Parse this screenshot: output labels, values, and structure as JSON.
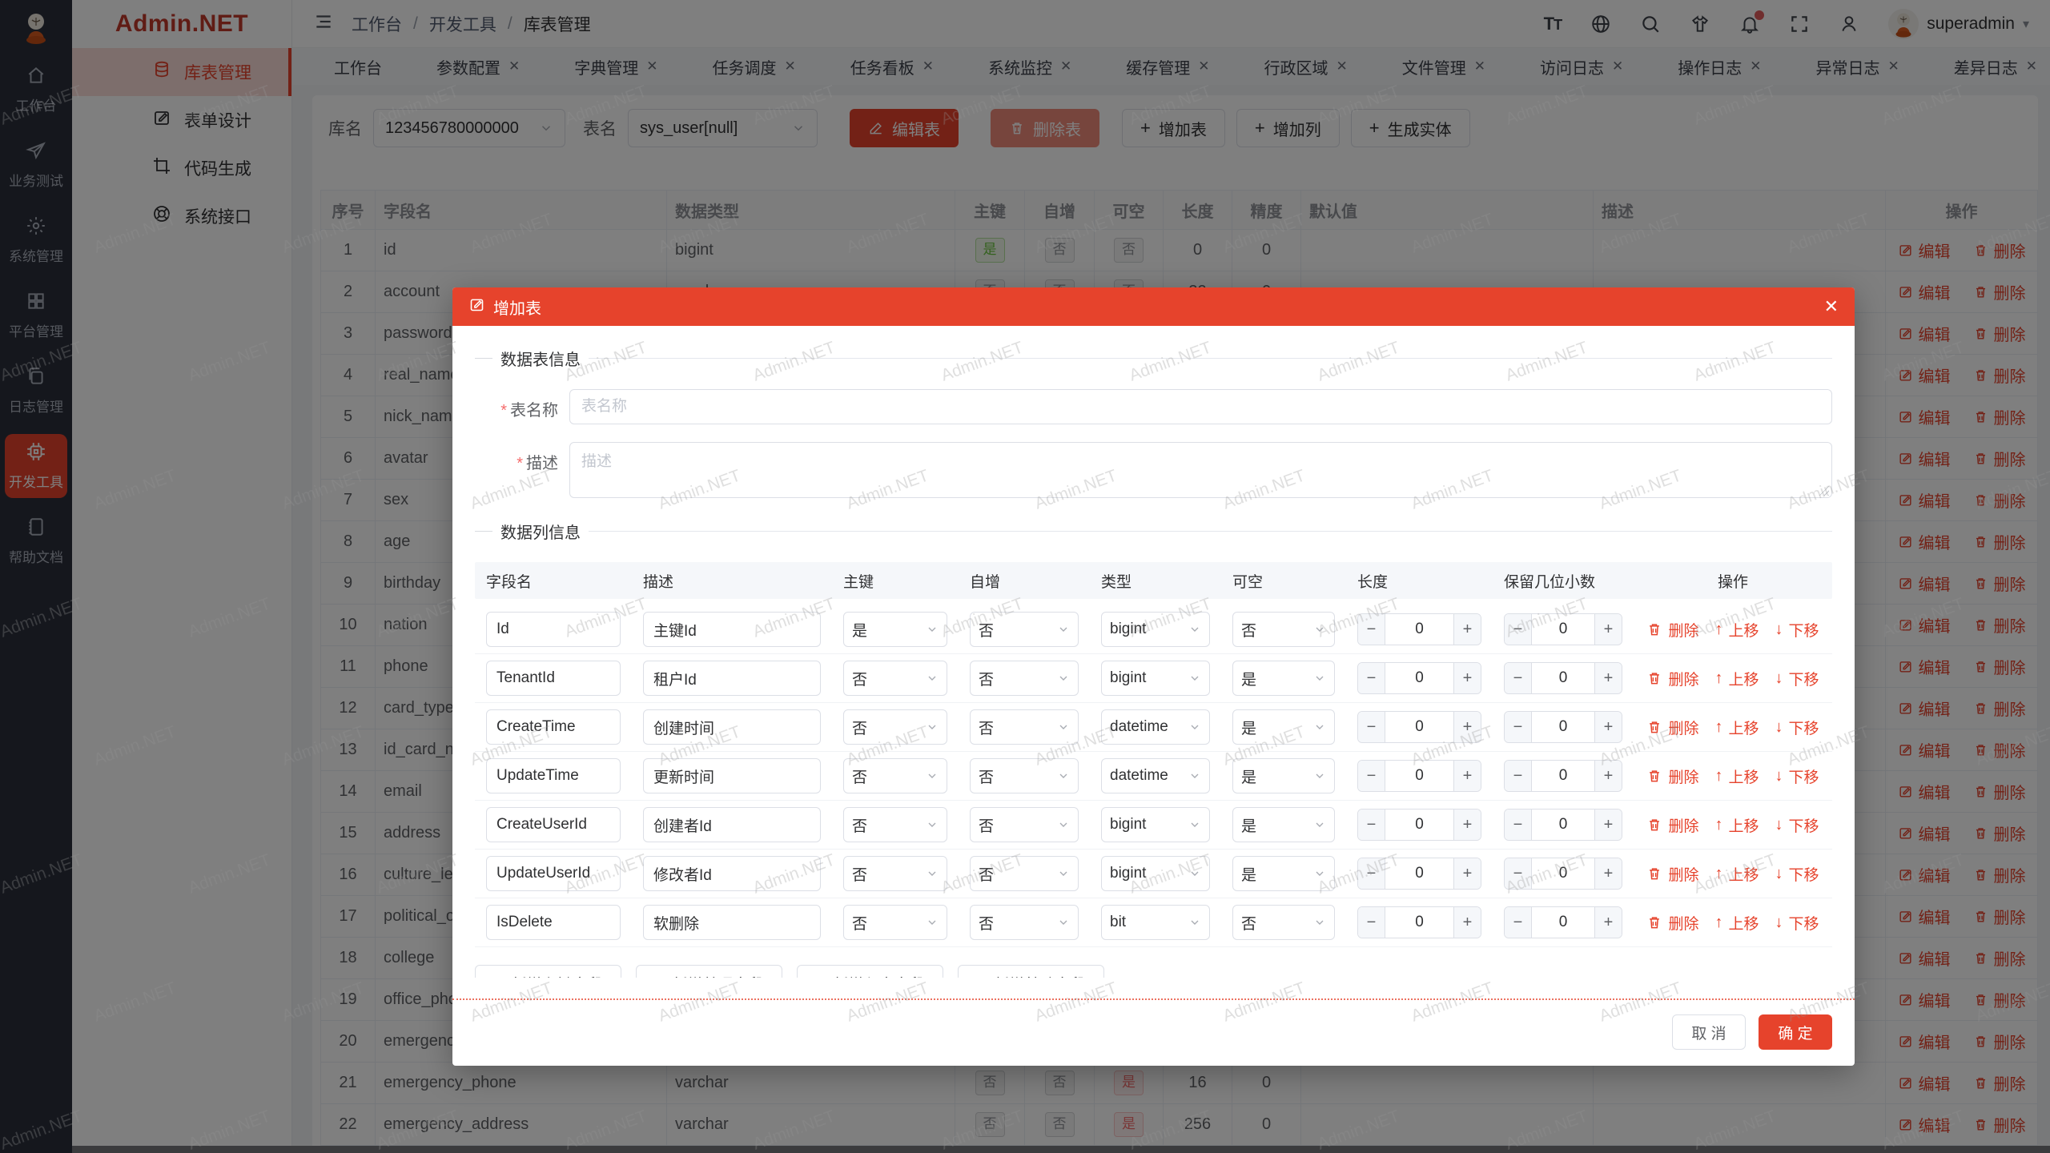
{
  "brand": {
    "name": "Admin.NET"
  },
  "colors": {
    "primary": "#e6432c",
    "sidebar_dark": "#2b2f3a",
    "pk_green": "#67c23a",
    "nullable_red": "#f56c6c"
  },
  "watermark": "Admin.NET",
  "icon_sidebar": {
    "items": [
      {
        "icon": "home-icon",
        "label": "工作台",
        "active": false
      },
      {
        "icon": "send-icon",
        "label": "业务测试",
        "active": false
      },
      {
        "icon": "gear-icon",
        "label": "系统管理",
        "active": false
      },
      {
        "icon": "grid-icon",
        "label": "平台管理",
        "active": false
      },
      {
        "icon": "copy-icon",
        "label": "日志管理",
        "active": false
      },
      {
        "icon": "chip-icon",
        "label": "开发工具",
        "active": true
      },
      {
        "icon": "notebook-icon",
        "label": "帮助文档",
        "active": false
      }
    ]
  },
  "menu_sidebar": {
    "items": [
      {
        "icon": "database-icon",
        "label": "库表管理",
        "active": true
      },
      {
        "icon": "edit-square-icon",
        "label": "表单设计",
        "active": false
      },
      {
        "icon": "crop-icon",
        "label": "代码生成",
        "active": false
      },
      {
        "icon": "api-icon",
        "label": "系统接口",
        "active": false
      }
    ]
  },
  "topbar": {
    "breadcrumb": [
      "工作台",
      "开发工具",
      "库表管理"
    ],
    "username": "superadmin"
  },
  "tabs": [
    {
      "label": "工作台",
      "closable": false,
      "active": false
    },
    {
      "label": "参数配置",
      "closable": true,
      "active": false
    },
    {
      "label": "字典管理",
      "closable": true,
      "active": false
    },
    {
      "label": "任务调度",
      "closable": true,
      "active": false
    },
    {
      "label": "任务看板",
      "closable": true,
      "active": false
    },
    {
      "label": "系统监控",
      "closable": true,
      "active": false
    },
    {
      "label": "缓存管理",
      "closable": true,
      "active": false
    },
    {
      "label": "行政区域",
      "closable": true,
      "active": false
    },
    {
      "label": "文件管理",
      "closable": true,
      "active": false
    },
    {
      "label": "访问日志",
      "closable": true,
      "active": false
    },
    {
      "label": "操作日志",
      "closable": true,
      "active": false
    },
    {
      "label": "异常日志",
      "closable": true,
      "active": false
    },
    {
      "label": "差异日志",
      "closable": true,
      "active": false
    },
    {
      "label": "库表管理",
      "closable": true,
      "active": true
    }
  ],
  "toolbar": {
    "db_label": "库名",
    "db_value": "123456780000000",
    "table_label": "表名",
    "table_value": "sys_user[null]",
    "edit_table": "编辑表",
    "delete_table": "删除表",
    "add_table": "增加表",
    "add_column": "增加列",
    "gen_entity": "生成实体"
  },
  "table": {
    "headers": [
      "序号",
      "字段名",
      "数据类型",
      "主键",
      "自增",
      "可空",
      "长度",
      "精度",
      "默认值",
      "描述",
      "操作"
    ],
    "edit_label": "编辑",
    "delete_label": "删除",
    "rows": [
      {
        "no": "1",
        "field": "id",
        "type": "bigint",
        "pk": "是",
        "inc": "否",
        "nullable": "否",
        "len": "0",
        "precision": "0",
        "default": "",
        "desc": ""
      },
      {
        "no": "2",
        "field": "account",
        "type": "varchar",
        "pk": "否",
        "inc": "否",
        "nullable": "否",
        "len": "32",
        "precision": "0",
        "default": "",
        "desc": ""
      },
      {
        "no": "3",
        "field": "password",
        "type": "",
        "pk": "",
        "inc": "",
        "nullable": "",
        "len": "",
        "precision": "",
        "default": "",
        "desc": ""
      },
      {
        "no": "4",
        "field": "real_name",
        "type": "",
        "pk": "",
        "inc": "",
        "nullable": "",
        "len": "",
        "precision": "",
        "default": "",
        "desc": ""
      },
      {
        "no": "5",
        "field": "nick_name",
        "type": "",
        "pk": "",
        "inc": "",
        "nullable": "",
        "len": "",
        "precision": "",
        "default": "",
        "desc": ""
      },
      {
        "no": "6",
        "field": "avatar",
        "type": "",
        "pk": "",
        "inc": "",
        "nullable": "",
        "len": "",
        "precision": "",
        "default": "",
        "desc": ""
      },
      {
        "no": "7",
        "field": "sex",
        "type": "",
        "pk": "",
        "inc": "",
        "nullable": "",
        "len": "",
        "precision": "",
        "default": "",
        "desc": ""
      },
      {
        "no": "8",
        "field": "age",
        "type": "",
        "pk": "",
        "inc": "",
        "nullable": "",
        "len": "",
        "precision": "",
        "default": "",
        "desc": ""
      },
      {
        "no": "9",
        "field": "birthday",
        "type": "",
        "pk": "",
        "inc": "",
        "nullable": "",
        "len": "",
        "precision": "",
        "default": "",
        "desc": ""
      },
      {
        "no": "10",
        "field": "nation",
        "type": "",
        "pk": "",
        "inc": "",
        "nullable": "",
        "len": "",
        "precision": "",
        "default": "",
        "desc": ""
      },
      {
        "no": "11",
        "field": "phone",
        "type": "",
        "pk": "",
        "inc": "",
        "nullable": "",
        "len": "",
        "precision": "",
        "default": "",
        "desc": ""
      },
      {
        "no": "12",
        "field": "card_type",
        "type": "",
        "pk": "",
        "inc": "",
        "nullable": "",
        "len": "",
        "precision": "",
        "default": "",
        "desc": ""
      },
      {
        "no": "13",
        "field": "id_card_num",
        "type": "",
        "pk": "",
        "inc": "",
        "nullable": "",
        "len": "",
        "precision": "",
        "default": "",
        "desc": ""
      },
      {
        "no": "14",
        "field": "email",
        "type": "",
        "pk": "",
        "inc": "",
        "nullable": "",
        "len": "",
        "precision": "",
        "default": "",
        "desc": ""
      },
      {
        "no": "15",
        "field": "address",
        "type": "",
        "pk": "",
        "inc": "",
        "nullable": "",
        "len": "",
        "precision": "",
        "default": "",
        "desc": ""
      },
      {
        "no": "16",
        "field": "culture_level",
        "type": "",
        "pk": "",
        "inc": "",
        "nullable": "",
        "len": "",
        "precision": "",
        "default": "",
        "desc": ""
      },
      {
        "no": "17",
        "field": "political_outlook",
        "type": "",
        "pk": "",
        "inc": "",
        "nullable": "",
        "len": "",
        "precision": "",
        "default": "",
        "desc": ""
      },
      {
        "no": "18",
        "field": "college",
        "type": "",
        "pk": "",
        "inc": "",
        "nullable": "",
        "len": "",
        "precision": "",
        "default": "",
        "desc": ""
      },
      {
        "no": "19",
        "field": "office_phone",
        "type": "",
        "pk": "",
        "inc": "",
        "nullable": "",
        "len": "",
        "precision": "",
        "default": "",
        "desc": ""
      },
      {
        "no": "20",
        "field": "emergency_contact",
        "type": "",
        "pk": "",
        "inc": "",
        "nullable": "",
        "len": "",
        "precision": "",
        "default": "",
        "desc": ""
      },
      {
        "no": "21",
        "field": "emergency_phone",
        "type": "varchar",
        "pk": "否",
        "inc": "否",
        "nullable": "是",
        "len": "16",
        "precision": "0",
        "default": "",
        "desc": ""
      },
      {
        "no": "22",
        "field": "emergency_address",
        "type": "varchar",
        "pk": "否",
        "inc": "否",
        "nullable": "是",
        "len": "256",
        "precision": "0",
        "default": "",
        "desc": ""
      }
    ]
  },
  "modal": {
    "title": "增加表",
    "close_glyph": "✕",
    "table_info_section": "数据表信息",
    "name_label": "表名称",
    "name_placeholder": "表名称",
    "name_value": "",
    "desc_label": "描述",
    "desc_placeholder": "描述",
    "desc_value": "",
    "columns_section": "数据列信息",
    "grid_headers": [
      "字段名",
      "描述",
      "主键",
      "自增",
      "类型",
      "可空",
      "长度",
      "保留几位小数",
      "操作"
    ],
    "row_actions": {
      "delete": "删除",
      "up": "上移",
      "down": "下移"
    },
    "rows": [
      {
        "field": "Id",
        "desc": "主键Id",
        "pk": "是",
        "inc": "否",
        "type": "bigint",
        "nullable": "否",
        "len": "0",
        "decimals": "0"
      },
      {
        "field": "TenantId",
        "desc": "租户Id",
        "pk": "否",
        "inc": "否",
        "type": "bigint",
        "nullable": "是",
        "len": "0",
        "decimals": "0"
      },
      {
        "field": "CreateTime",
        "desc": "创建时间",
        "pk": "否",
        "inc": "否",
        "type": "datetime",
        "nullable": "是",
        "len": "0",
        "decimals": "0"
      },
      {
        "field": "UpdateTime",
        "desc": "更新时间",
        "pk": "否",
        "inc": "否",
        "type": "datetime",
        "nullable": "是",
        "len": "0",
        "decimals": "0"
      },
      {
        "field": "CreateUserId",
        "desc": "创建者Id",
        "pk": "否",
        "inc": "否",
        "type": "bigint",
        "nullable": "是",
        "len": "0",
        "decimals": "0"
      },
      {
        "field": "UpdateUserId",
        "desc": "修改者Id",
        "pk": "否",
        "inc": "否",
        "type": "bigint",
        "nullable": "是",
        "len": "0",
        "decimals": "0"
      },
      {
        "field": "IsDelete",
        "desc": "软删除",
        "pk": "否",
        "inc": "否",
        "type": "bit",
        "nullable": "否",
        "len": "0",
        "decimals": "0"
      }
    ],
    "add_buttons": [
      "新增主键字段",
      "新增普通字段",
      "新增租户字段",
      "新增基础字段"
    ],
    "cancel_label": "取 消",
    "confirm_label": "确 定"
  }
}
